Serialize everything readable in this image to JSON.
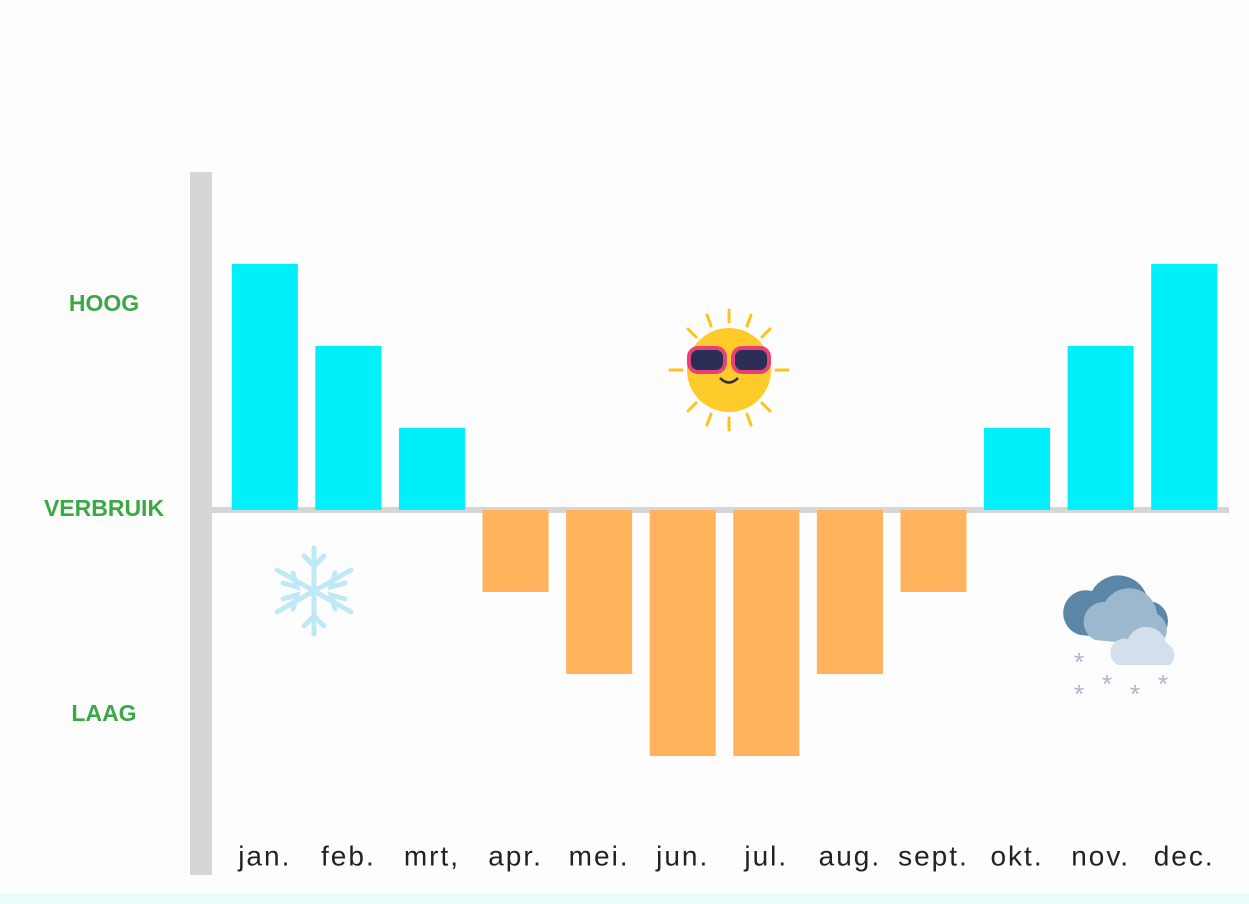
{
  "chart_data": {
    "type": "bar",
    "categories": [
      "jan.",
      "feb.",
      "mrt,",
      "apr.",
      "mei.",
      "jun.",
      "jul.",
      "aug.",
      "sept.",
      "okt.",
      "nov.",
      "dec."
    ],
    "values": [
      3,
      2,
      1,
      -1,
      -2,
      -3,
      -3,
      -2,
      -1,
      1,
      2,
      3
    ],
    "colors": {
      "positive": "#00f0fa",
      "negative": "#ffb35c"
    },
    "ylim": [
      -4.45,
      4.12
    ],
    "yticks": [
      {
        "value": 2.5,
        "label": "HOOG"
      },
      {
        "value": 0,
        "label": "VERBRUIK"
      },
      {
        "value": -2.5,
        "label": "LAAG"
      }
    ],
    "grid": false
  }
}
